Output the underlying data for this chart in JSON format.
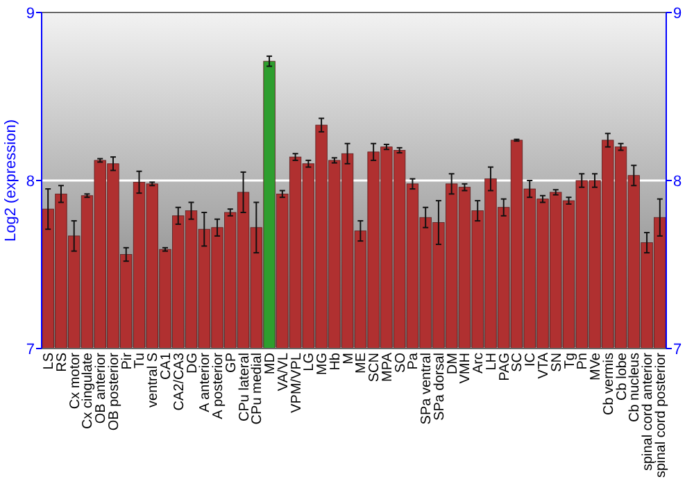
{
  "chart_data": {
    "type": "bar",
    "ylabel": "Log2 (expression)",
    "categories": [
      "LS",
      "RS",
      "Cx motor",
      "Cx cingulate",
      "OB anterior",
      "OB posterior",
      "Pir",
      "Tu",
      "ventral S",
      "CA1",
      "CA2/CA3",
      "DG",
      "A anterior",
      "A posterior",
      "GP",
      "CPu lateral",
      "CPu medial",
      "MD",
      "VA/VL",
      "VPM/VPL",
      "LG",
      "MG",
      "Hb",
      "M",
      "ME",
      "SCN",
      "MPA",
      "SO",
      "Pa",
      "SPa ventral",
      "SPa dorsal",
      "DM",
      "VMH",
      "Arc",
      "LH",
      "PAG",
      "SC",
      "IC",
      "VTA",
      "SN",
      "Tg",
      "Pn",
      "MVe",
      "Cb vermis",
      "Cb lobe",
      "Cb nucleus",
      "spinal cord anterior",
      "spinal cord posterior"
    ],
    "values": [
      7.83,
      7.92,
      7.67,
      7.91,
      8.12,
      8.1,
      7.56,
      7.99,
      7.98,
      7.59,
      7.79,
      7.82,
      7.71,
      7.72,
      7.81,
      7.93,
      7.72,
      8.71,
      7.92,
      8.14,
      8.1,
      8.33,
      8.12,
      8.16,
      7.7,
      8.17,
      8.2,
      8.18,
      7.98,
      7.78,
      7.75,
      7.98,
      7.96,
      7.82,
      8.01,
      7.84,
      8.24,
      7.95,
      7.89,
      7.93,
      7.88,
      8.0,
      8.0,
      8.24,
      8.2,
      8.03,
      7.63,
      7.78
    ],
    "errors": [
      0.12,
      0.05,
      0.09,
      0.01,
      0.01,
      0.04,
      0.04,
      0.065,
      0.01,
      0.01,
      0.05,
      0.05,
      0.1,
      0.05,
      0.02,
      0.12,
      0.15,
      0.03,
      0.02,
      0.02,
      0.02,
      0.04,
      0.015,
      0.06,
      0.06,
      0.05,
      0.015,
      0.015,
      0.03,
      0.06,
      0.13,
      0.06,
      0.02,
      0.06,
      0.07,
      0.05,
      0.005,
      0.05,
      0.02,
      0.015,
      0.02,
      0.04,
      0.04,
      0.04,
      0.02,
      0.06,
      0.06,
      0.11
    ],
    "colors": [
      "#b03030",
      "#b03030",
      "#b03030",
      "#b03030",
      "#b03030",
      "#b03030",
      "#b03030",
      "#b03030",
      "#b03030",
      "#b03030",
      "#b03030",
      "#b03030",
      "#b03030",
      "#b03030",
      "#b03030",
      "#b03030",
      "#b03030",
      "#2e9e2e",
      "#b03030",
      "#b03030",
      "#b03030",
      "#b03030",
      "#b03030",
      "#b03030",
      "#b03030",
      "#b03030",
      "#b03030",
      "#b03030",
      "#b03030",
      "#b03030",
      "#b03030",
      "#b03030",
      "#b03030",
      "#b03030",
      "#b03030",
      "#b03030",
      "#b03030",
      "#b03030",
      "#b03030",
      "#b03030",
      "#b03030",
      "#b03030",
      "#b03030",
      "#b03030",
      "#b03030",
      "#b03030",
      "#b03030",
      "#b03030"
    ],
    "ylim": [
      7,
      9
    ],
    "yticks": [
      7,
      8,
      9
    ],
    "y2lim": [
      7,
      9
    ],
    "y2ticks": [
      7,
      8,
      9
    ],
    "grid": "y"
  }
}
